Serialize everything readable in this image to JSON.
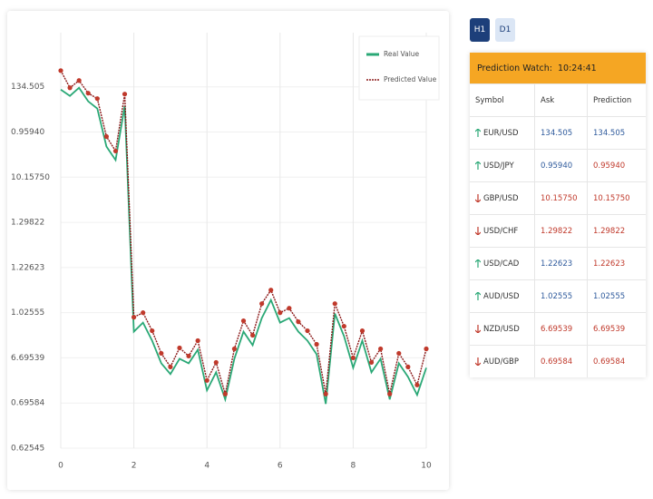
{
  "controls": {
    "buttons": [
      "H1",
      "D1"
    ],
    "active": 0
  },
  "watch": {
    "title": "Prediction Watch:",
    "time": "10:24:41",
    "columns": [
      "Symbol",
      "Ask",
      "Prediction"
    ],
    "rows": [
      {
        "trend": "up",
        "symbol": "EUR/USD",
        "ask": "134.505",
        "prediction": "134.505",
        "ask_color": "#2e5a9c",
        "prediction_color": "#2e5a9c"
      },
      {
        "trend": "up",
        "symbol": "USD/JPY",
        "ask": "0.95940",
        "prediction": "0.95940",
        "ask_color": "#2e5a9c",
        "prediction_color": "#c0392b"
      },
      {
        "trend": "down",
        "symbol": "GBP/USD",
        "ask": "10.15750",
        "prediction": "10.15750",
        "ask_color": "#c0392b",
        "prediction_color": "#c0392b"
      },
      {
        "trend": "down",
        "symbol": "USD/CHF",
        "ask": "1.29822",
        "prediction": "1.29822",
        "ask_color": "#c0392b",
        "prediction_color": "#c0392b"
      },
      {
        "trend": "up",
        "symbol": "USD/CAD",
        "ask": "1.22623",
        "prediction": "1.22623",
        "ask_color": "#2e5a9c",
        "prediction_color": "#c0392b"
      },
      {
        "trend": "up",
        "symbol": "AUD/USD",
        "ask": "1.02555",
        "prediction": "1.02555",
        "ask_color": "#2e5a9c",
        "prediction_color": "#2e5a9c"
      },
      {
        "trend": "down",
        "symbol": "NZD/USD",
        "ask": "6.69539",
        "prediction": "6.69539",
        "ask_color": "#c0392b",
        "prediction_color": "#c0392b"
      },
      {
        "trend": "down",
        "symbol": "AUD/GBP",
        "ask": "0.69584",
        "prediction": "0.69584",
        "ask_color": "#c0392b",
        "prediction_color": "#c0392b"
      }
    ]
  },
  "chart_data": {
    "type": "line",
    "x": [
      0,
      0.25,
      0.5,
      0.75,
      1,
      1.25,
      1.5,
      1.75,
      2,
      2.25,
      2.5,
      2.75,
      3,
      3.25,
      3.5,
      3.75,
      4,
      4.25,
      4.5,
      4.75,
      5,
      5.25,
      5.5,
      5.75,
      6,
      6.25,
      6.5,
      6.75,
      7,
      7.25,
      7.5,
      7.75,
      8,
      8.25,
      8.5,
      8.75,
      9,
      9.25,
      9.5,
      9.75,
      10
    ],
    "series": [
      {
        "name": "Real Value",
        "color": "#2aa876",
        "style": "solid",
        "values": [
          7.94,
          7.8,
          7.98,
          7.68,
          7.52,
          6.68,
          6.38,
          7.58,
          2.58,
          2.78,
          2.38,
          1.88,
          1.64,
          1.98,
          1.88,
          2.18,
          1.28,
          1.68,
          1.08,
          1.98,
          2.58,
          2.28,
          2.88,
          3.28,
          2.78,
          2.88,
          2.58,
          2.38,
          2.08,
          0.98,
          2.98,
          2.48,
          1.78,
          2.38,
          1.68,
          1.98,
          1.08,
          1.88,
          1.58,
          1.18,
          1.78
        ]
      },
      {
        "name": "Predicted Value",
        "color": "#8b1a1a",
        "style": "dotted",
        "marker_color": "#c0392b",
        "values": [
          8.36,
          7.98,
          8.14,
          7.86,
          7.74,
          6.9,
          6.58,
          7.84,
          2.9,
          3.0,
          2.6,
          2.1,
          1.8,
          2.22,
          2.04,
          2.38,
          1.5,
          1.9,
          1.2,
          2.2,
          2.82,
          2.5,
          3.2,
          3.5,
          3.0,
          3.1,
          2.8,
          2.6,
          2.3,
          1.2,
          3.2,
          2.7,
          2.0,
          2.6,
          1.9,
          2.2,
          1.2,
          2.1,
          1.8,
          1.4,
          2.2
        ]
      }
    ],
    "xlim": [
      0,
      10
    ],
    "xticks": [
      0,
      2,
      4,
      6,
      8,
      10
    ],
    "ylim": [
      0,
      9.2
    ],
    "yticks": [
      {
        "value": 0,
        "label": "0.62545"
      },
      {
        "value": 1,
        "label": "0.69584"
      },
      {
        "value": 2,
        "label": "6.69539"
      },
      {
        "value": 3,
        "label": "1.02555"
      },
      {
        "value": 4,
        "label": "1.22623"
      },
      {
        "value": 5,
        "label": "1.29822"
      },
      {
        "value": 6,
        "label": "10.15750"
      },
      {
        "value": 7,
        "label": "0.95940"
      },
      {
        "value": 8,
        "label": "134.505"
      }
    ],
    "grid": true,
    "legend": "upper right"
  }
}
